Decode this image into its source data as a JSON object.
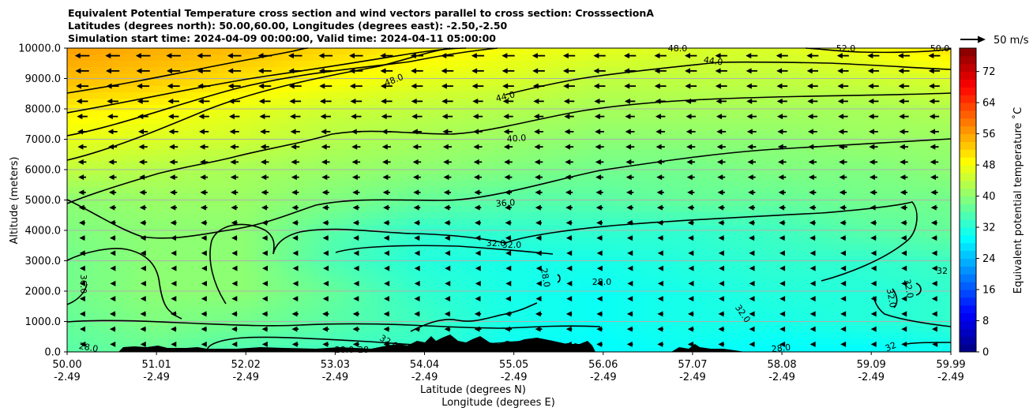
{
  "chart_data": {
    "type": "heatmap",
    "title_lines": [
      "Equivalent Potential Temperature cross section and wind vectors parallel to cross section: CrosssectionA",
      "Latitudes (degrees north): 50.00,60.00, Longitudes (degrees east): -2.50,-2.50",
      "Simulation start time: 2024-04-09 00:00:00, Valid time: 2024-04-11 05:00:00"
    ],
    "ylabel": "Altitude (meters)",
    "xlabel_lat": "Latitude (degrees N)",
    "xlabel_lon": "Longitude (degrees E)",
    "ylim": [
      0,
      10000
    ],
    "xlim": [
      50.0,
      59.99
    ],
    "y_ticks": [
      "0.0",
      "1000.0",
      "2000.0",
      "3000.0",
      "4000.0",
      "5000.0",
      "6000.0",
      "7000.0",
      "8000.0",
      "9000.0",
      "10000.0"
    ],
    "x_ticks_lat": [
      "50.00",
      "51.01",
      "52.02",
      "53.03",
      "54.04",
      "55.05",
      "56.06",
      "57.07",
      "58.08",
      "59.09",
      "59.99"
    ],
    "x_ticks_lon": [
      "-2.49",
      "-2.49",
      "-2.49",
      "-2.49",
      "-2.49",
      "-2.49",
      "-2.49",
      "-2.49",
      "-2.49",
      "-2.49",
      "-2.49"
    ],
    "grid": "horizontal",
    "colorbar": {
      "label": "Equivalent potential temperature ˚C",
      "range": [
        0,
        78
      ],
      "ticks": [
        "0",
        "8",
        "16",
        "24",
        "32",
        "40",
        "48",
        "56",
        "64",
        "72"
      ]
    },
    "wind_key_label": "50 m/s",
    "contour_labels": [
      "48.0",
      "52.0",
      "50.0",
      "44.0",
      "48.0",
      "44.0",
      "40.0",
      "36.0",
      "36.0",
      "32.0",
      "32.0",
      "28.0",
      "28.0",
      "32.0",
      "32.0",
      "32.0",
      "32",
      "32.0",
      "28.0",
      "28",
      "28.0",
      "32",
      "28.0",
      "28.0"
    ],
    "fields": {
      "theta_e_rows_by_altitude_m": [
        0,
        1000,
        2000,
        3000,
        4000,
        5000,
        6000,
        7000,
        8000,
        9000,
        10000
      ],
      "theta_e_cols_by_latitude": [
        50.0,
        51.0,
        52.0,
        53.0,
        54.0,
        55.0,
        56.0,
        57.0,
        58.0,
        59.0,
        60.0
      ],
      "theta_e_C": [
        [
          36,
          37,
          35,
          34,
          33,
          30,
          29,
          30,
          29,
          29,
          30
        ],
        [
          37,
          39,
          38,
          36,
          34,
          31,
          30,
          31,
          31,
          32,
          33
        ],
        [
          38,
          40,
          40,
          37,
          33,
          31,
          30,
          31,
          32,
          32,
          33
        ],
        [
          38,
          40,
          40,
          35,
          32,
          31,
          31,
          32,
          33,
          33,
          34
        ],
        [
          39,
          40,
          40,
          36,
          33,
          33,
          33,
          33,
          34,
          36,
          37
        ],
        [
          40,
          41,
          41,
          39,
          37,
          36,
          36,
          37,
          37,
          38,
          38
        ],
        [
          44,
          43,
          42,
          41,
          40,
          39,
          38,
          38,
          39,
          39,
          40
        ],
        [
          47,
          46,
          45,
          43,
          42,
          41,
          40,
          40,
          40,
          41,
          41
        ],
        [
          50,
          49,
          47,
          45,
          44,
          43,
          42,
          42,
          42,
          42,
          43
        ],
        [
          54,
          53,
          51,
          49,
          47,
          46,
          44,
          44,
          44,
          45,
          46
        ],
        [
          56,
          55,
          54,
          52,
          50,
          48,
          47,
          46,
          46,
          48,
          51
        ]
      ],
      "wind_speed_ms_rows_by_altitude_m": [
        0,
        1000,
        2000,
        3000,
        4000,
        5000,
        6000,
        7000,
        8000,
        9000,
        10000
      ],
      "wind_speed_ms": [
        [
          8,
          10,
          10,
          12,
          12,
          14,
          12,
          12,
          10,
          10,
          8
        ],
        [
          10,
          12,
          12,
          14,
          12,
          14,
          12,
          12,
          10,
          10,
          10
        ],
        [
          10,
          10,
          10,
          10,
          10,
          10,
          10,
          10,
          10,
          10,
          10
        ],
        [
          10,
          10,
          10,
          10,
          10,
          10,
          10,
          10,
          10,
          10,
          10
        ],
        [
          12,
          12,
          12,
          12,
          12,
          12,
          12,
          12,
          12,
          12,
          12
        ],
        [
          14,
          14,
          14,
          14,
          14,
          14,
          14,
          14,
          14,
          14,
          14
        ],
        [
          16,
          16,
          16,
          16,
          16,
          16,
          16,
          16,
          16,
          16,
          16
        ],
        [
          18,
          18,
          18,
          18,
          18,
          18,
          18,
          18,
          18,
          18,
          18
        ],
        [
          22,
          22,
          22,
          22,
          22,
          20,
          20,
          20,
          20,
          20,
          20
        ],
        [
          26,
          26,
          26,
          26,
          24,
          24,
          24,
          24,
          22,
          22,
          22
        ],
        [
          30,
          30,
          28,
          28,
          26,
          26,
          24,
          24,
          24,
          24,
          24
        ]
      ],
      "wind_direction": "toward decreasing latitude"
    }
  }
}
